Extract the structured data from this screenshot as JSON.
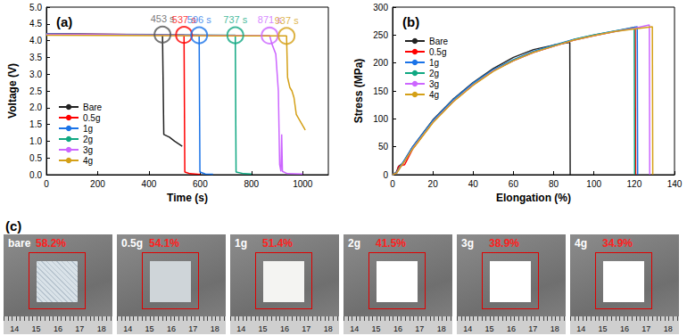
{
  "chart_data": [
    {
      "type": "line",
      "panel_label": "(a)",
      "xlabel": "Time (s)",
      "ylabel": "Voltage (V)",
      "xlim": [
        0,
        1100
      ],
      "xticks": [
        0,
        200,
        400,
        600,
        800,
        1000
      ],
      "ylim": [
        0,
        5
      ],
      "yticks": [
        {
          "value": 0,
          "label": "0.0"
        },
        0.5,
        {
          "value": 1,
          "label": "1.0"
        },
        1.5,
        {
          "value": 2,
          "label": "2.0"
        },
        2.5,
        {
          "value": 3,
          "label": "3.0"
        },
        3.5,
        {
          "value": 4,
          "label": "4.0"
        },
        4.5,
        {
          "value": 5,
          "label": "5.0"
        }
      ],
      "grid": false,
      "legend": "lower left",
      "series": [
        {
          "name": "Bare",
          "color": "#222222",
          "x": [
            0,
            200,
            453,
            458,
            480,
            500,
            530
          ],
          "values": [
            4.2,
            4.19,
            4.18,
            1.2,
            1.12,
            1.0,
            0.85
          ]
        },
        {
          "name": "0.5g",
          "color": "#ff0000",
          "x": [
            0,
            537,
            540,
            560,
            600
          ],
          "values": [
            4.2,
            4.17,
            0.08,
            0.03,
            0.01
          ]
        },
        {
          "name": "1g",
          "color": "#1a73e8",
          "x": [
            0,
            596,
            599,
            620,
            650
          ],
          "values": [
            4.2,
            4.16,
            0.08,
            0.02,
            0.01
          ]
        },
        {
          "name": "2g",
          "color": "#10a882",
          "x": [
            0,
            737,
            740,
            770,
            800
          ],
          "values": [
            4.19,
            4.16,
            0.08,
            0.03,
            0.02
          ]
        },
        {
          "name": "3g",
          "color": "#cc66ff",
          "x": [
            0,
            871,
            880,
            895,
            905,
            910,
            915,
            918,
            921,
            940,
            1000
          ],
          "values": [
            4.19,
            4.15,
            3.9,
            3.6,
            2.5,
            0.3,
            0.1,
            1.2,
            0.1,
            0.03,
            0.02
          ]
        },
        {
          "name": "4g",
          "color": "#d4a017",
          "x": [
            0,
            937,
            941,
            950,
            958,
            966,
            975,
            990,
            1005,
            1010
          ],
          "values": [
            4.16,
            4.14,
            2.9,
            2.6,
            2.5,
            2.3,
            1.8,
            1.6,
            1.4,
            1.33
          ]
        }
      ],
      "annotations": [
        {
          "text": "453 s",
          "x": 453,
          "y": 4.18,
          "color": "#555555"
        },
        {
          "text": "537 s",
          "x": 537,
          "y": 4.17,
          "color": "#ff0000"
        },
        {
          "text": "596 s",
          "x": 596,
          "y": 4.16,
          "color": "#1a73e8"
        },
        {
          "text": "737 s",
          "x": 737,
          "y": 4.16,
          "color": "#10a882"
        },
        {
          "text": "871 s",
          "x": 871,
          "y": 4.15,
          "color": "#cc66ff"
        },
        {
          "text": "937 s",
          "x": 937,
          "y": 4.14,
          "color": "#d4a017"
        }
      ]
    },
    {
      "type": "line",
      "panel_label": "(b)",
      "xlabel": "Elongation (%)",
      "ylabel": "Stress (MPa)",
      "xlim": [
        0,
        140
      ],
      "xticks": [
        0,
        20,
        40,
        60,
        80,
        100,
        120,
        140
      ],
      "ylim": [
        0,
        300
      ],
      "yticks": [
        0,
        50,
        100,
        150,
        200,
        250,
        300
      ],
      "grid": false,
      "legend": "upper left",
      "series": [
        {
          "name": "Bare",
          "color": "#222222",
          "x": [
            0,
            2,
            3,
            5,
            10,
            20,
            30,
            40,
            50,
            60,
            70,
            80,
            88,
            88.2
          ],
          "values": [
            0,
            5,
            15,
            20,
            50,
            98,
            135,
            165,
            190,
            210,
            224,
            232,
            237,
            0
          ]
        },
        {
          "name": "0.5g",
          "color": "#ff0000",
          "x": [
            0,
            2,
            3,
            6,
            10,
            20,
            30,
            40,
            50,
            60,
            70,
            80,
            90,
            100,
            110,
            120.5,
            120.7
          ],
          "values": [
            0,
            3,
            15,
            18,
            46,
            94,
            131,
            161,
            186,
            204,
            219,
            230,
            241,
            249,
            256,
            264,
            0
          ]
        },
        {
          "name": "1g",
          "color": "#1a73e8",
          "x": [
            0,
            2,
            4,
            6,
            10,
            20,
            30,
            40,
            50,
            60,
            70,
            80,
            90,
            100,
            110,
            121.5,
            121.7
          ],
          "values": [
            0,
            4,
            16,
            27,
            50,
            97,
            134,
            164,
            188,
            206,
            221,
            232,
            242,
            250,
            257,
            265,
            0
          ]
        },
        {
          "name": "2g",
          "color": "#10a882",
          "x": [
            0,
            2,
            4,
            6,
            10,
            20,
            30,
            40,
            50,
            60,
            70,
            80,
            90,
            100,
            110,
            120,
            120.2
          ],
          "values": [
            0,
            3,
            15,
            25,
            48,
            95,
            132,
            162,
            187,
            205,
            220,
            231,
            242,
            250,
            257,
            263,
            0
          ]
        },
        {
          "name": "3g",
          "color": "#cc66ff",
          "x": [
            0,
            2,
            4,
            6,
            10,
            20,
            30,
            40,
            50,
            60,
            70,
            80,
            90,
            100,
            110,
            120,
            127.5,
            127.7
          ],
          "values": [
            0,
            3,
            14,
            24,
            47,
            94,
            131,
            161,
            186,
            204,
            219,
            230,
            241,
            249,
            256,
            262,
            268,
            0
          ]
        },
        {
          "name": "4g",
          "color": "#d4a017",
          "x": [
            0,
            2,
            4,
            6,
            10,
            20,
            30,
            40,
            50,
            60,
            70,
            80,
            90,
            100,
            110,
            120,
            129,
            129.2
          ],
          "values": [
            0,
            3,
            14,
            24,
            46,
            93,
            130,
            160,
            185,
            204,
            219,
            230,
            241,
            249,
            256,
            261,
            265,
            0
          ]
        }
      ]
    }
  ],
  "photos": {
    "panel_label": "(c)",
    "ruler": [
      "14",
      "15",
      "16",
      "17",
      "18"
    ],
    "samples": [
      {
        "label": "bare",
        "porosity": "58.2%"
      },
      {
        "label": "0.5g",
        "porosity": "54.1%"
      },
      {
        "label": "1g",
        "porosity": "51.4%"
      },
      {
        "label": "2g",
        "porosity": "41.5%"
      },
      {
        "label": "3g",
        "porosity": "38.9%"
      },
      {
        "label": "4g",
        "porosity": "34.9%"
      }
    ]
  }
}
